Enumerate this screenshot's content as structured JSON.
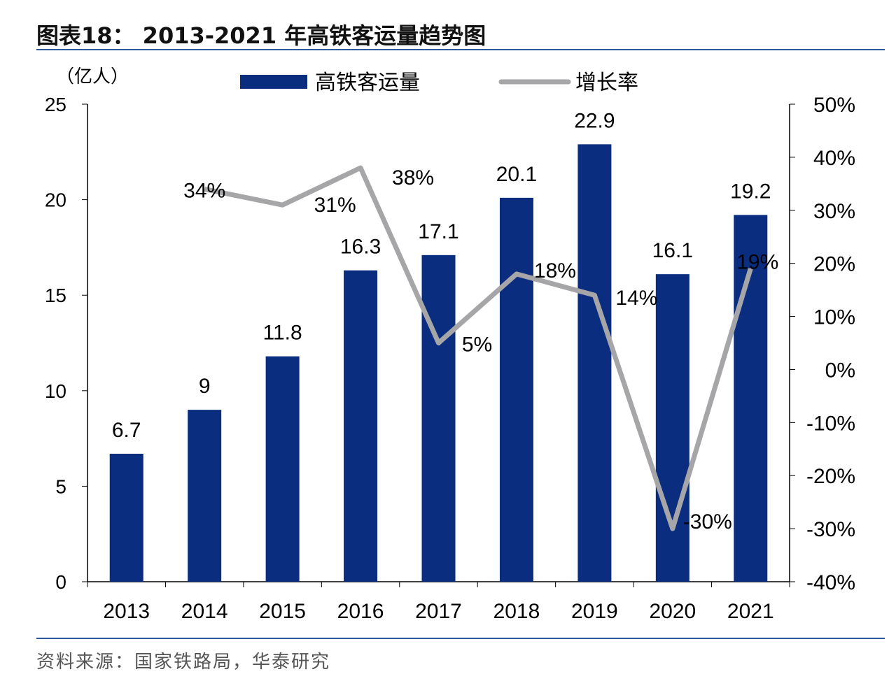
{
  "title": "图表18： 2013-2021 年高铁客运量趋势图",
  "source": "资料来源：国家铁路局，华泰研究",
  "chart_data": {
    "type": "bar+line",
    "categories": [
      "2013",
      "2014",
      "2015",
      "2016",
      "2017",
      "2018",
      "2019",
      "2020",
      "2021"
    ],
    "series": [
      {
        "name": "高铁客运量",
        "type": "bar",
        "axis": "left",
        "color": "#0a2d7f",
        "values": [
          6.7,
          9,
          11.8,
          16.3,
          17.1,
          20.1,
          22.9,
          16.1,
          19.2
        ],
        "labels": [
          "6.7",
          "9",
          "11.8",
          "16.3",
          "17.1",
          "20.1",
          "22.9",
          "16.1",
          "19.2"
        ]
      },
      {
        "name": "增长率",
        "type": "line",
        "axis": "right",
        "color": "#a6a6a8",
        "values": [
          null,
          34,
          31,
          38,
          5,
          18,
          14,
          -30,
          19
        ],
        "labels": [
          "",
          "34%",
          "31%",
          "38%",
          "5%",
          "18%",
          "14%",
          "-30%",
          "19%"
        ]
      }
    ],
    "ylabel_left": "（亿人）",
    "ylim_left": [
      0,
      25
    ],
    "yticks_left": [
      "0",
      "5",
      "10",
      "15",
      "20",
      "25"
    ],
    "ylim_right": [
      -40,
      50
    ],
    "yticks_right": [
      "-40%",
      "-30%",
      "-20%",
      "-10%",
      "0%",
      "10%",
      "20%",
      "30%",
      "40%",
      "50%"
    ],
    "legend": "top",
    "grid": false
  }
}
